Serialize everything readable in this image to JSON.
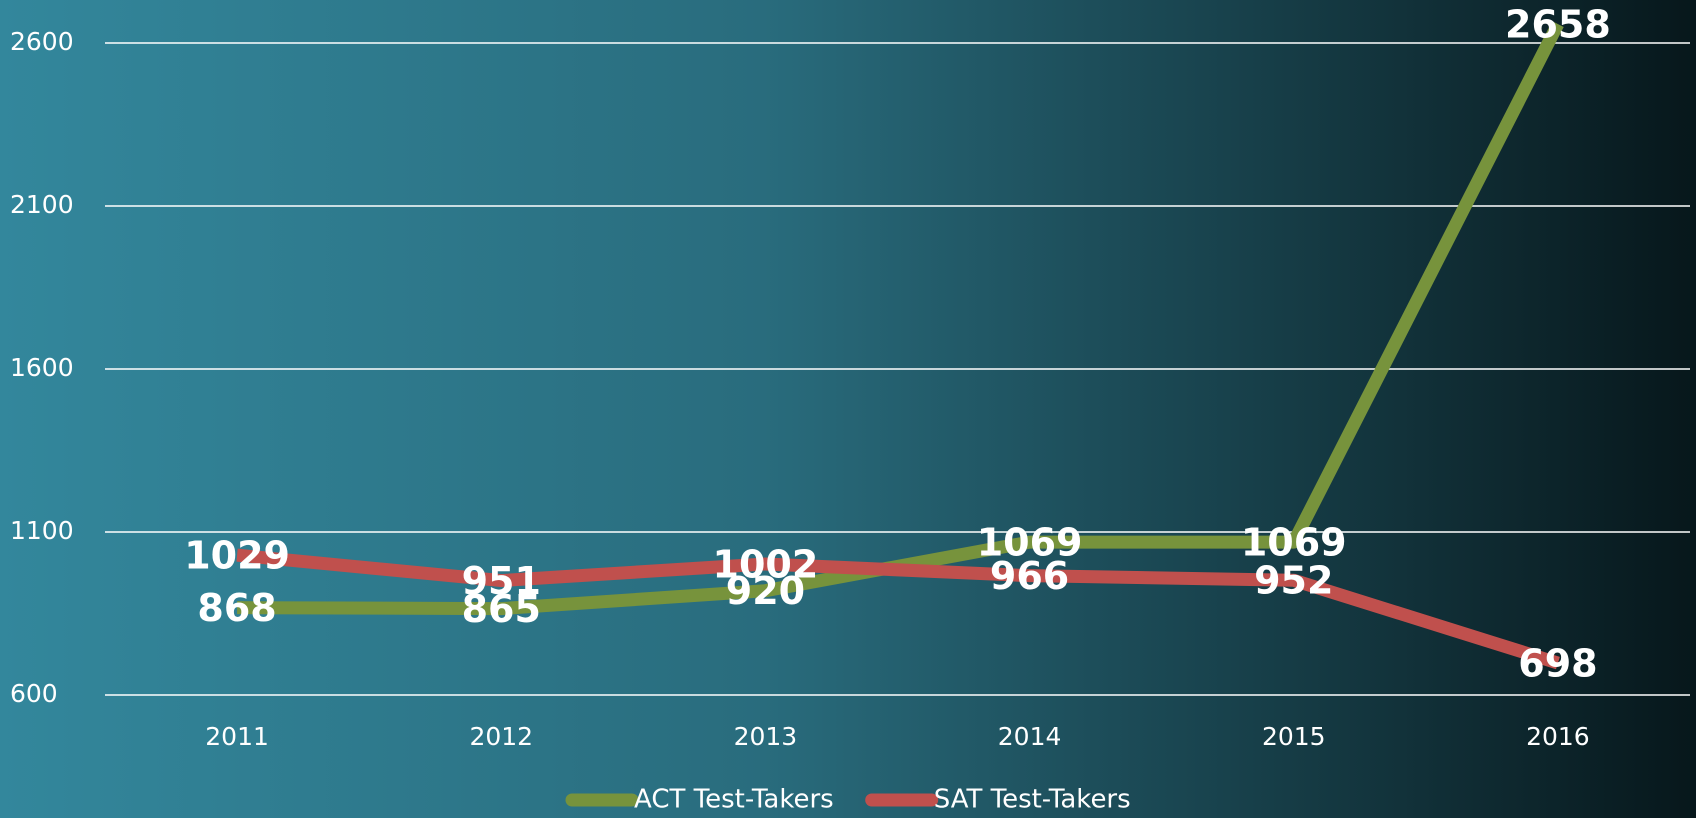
{
  "chart_data": {
    "type": "line",
    "categories": [
      "2011",
      "2012",
      "2013",
      "2014",
      "2015",
      "2016"
    ],
    "series": [
      {
        "name": "ACT Test-Takers",
        "color": "#77933c",
        "values": [
          868,
          865,
          920,
          1069,
          1069,
          2658
        ]
      },
      {
        "name": "SAT Test-Takers",
        "color": "#c0504d",
        "values": [
          1029,
          951,
          1002,
          966,
          952,
          698
        ]
      }
    ],
    "ylim": [
      600,
      2600
    ],
    "yticks": [
      600,
      1100,
      1600,
      2100,
      2600
    ],
    "grid": true,
    "legend": "bottom"
  }
}
